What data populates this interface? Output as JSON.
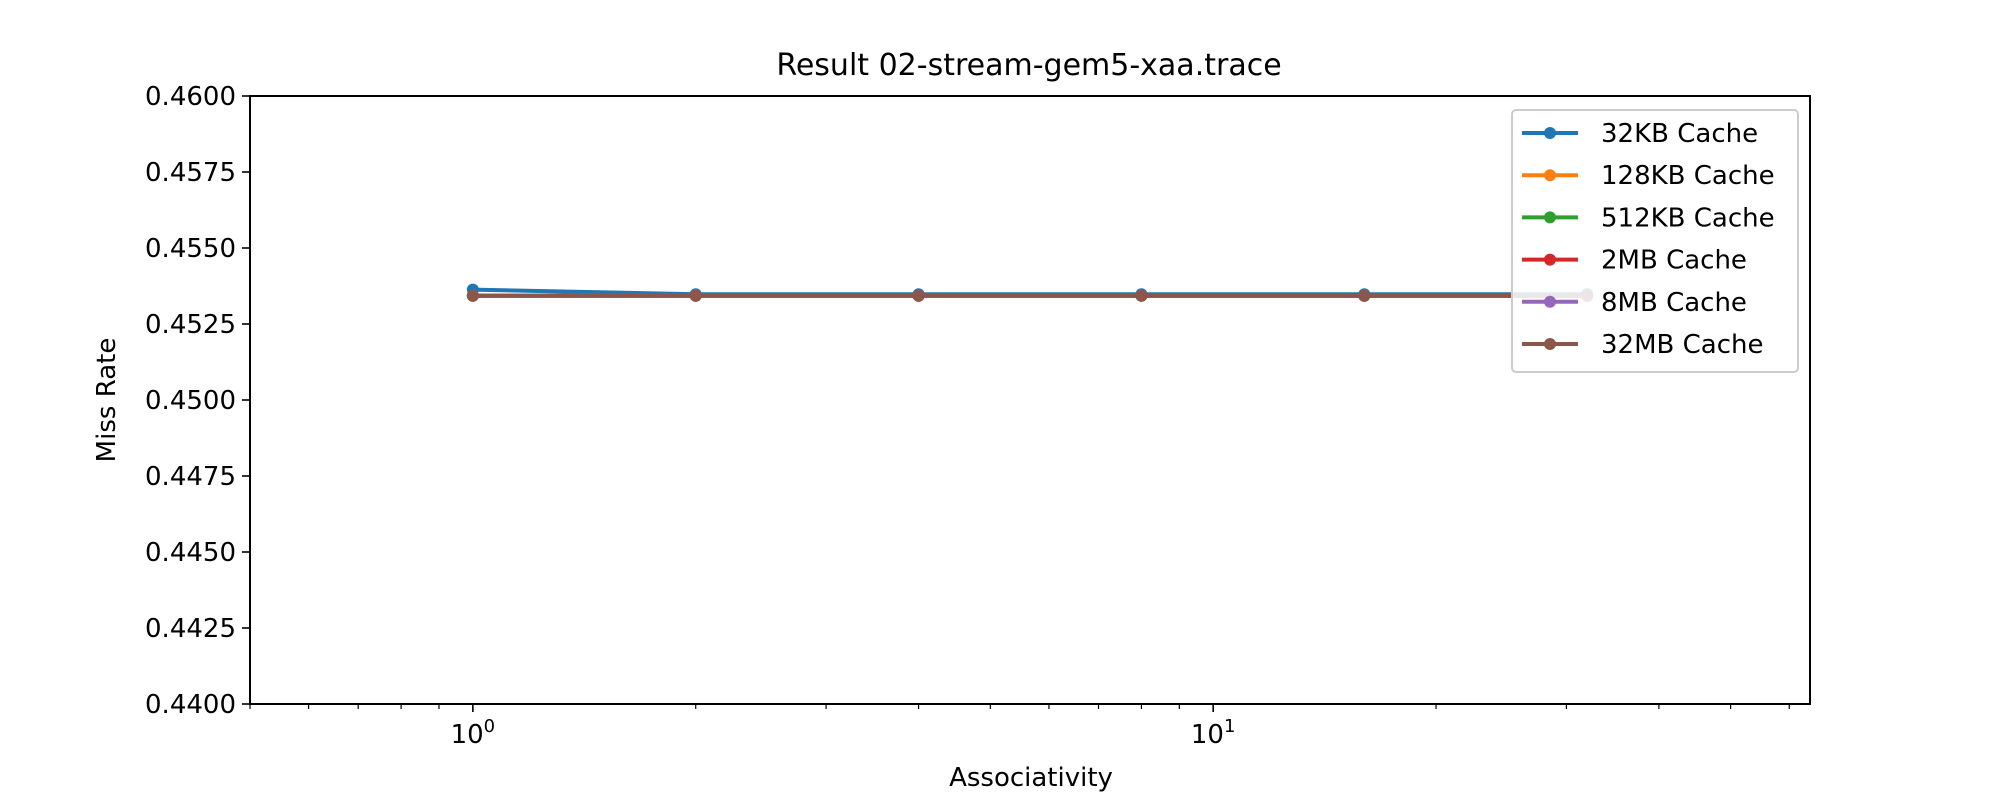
{
  "chart_data": {
    "type": "line",
    "title": "Result 02-stream-gem5-xaa.trace",
    "xlabel": "Associativity",
    "ylabel": "Miss Rate",
    "xscale": "log",
    "xlim": [
      0.5,
      64
    ],
    "ylim": [
      0.44,
      0.46
    ],
    "x": [
      1,
      2,
      4,
      8,
      16,
      32
    ],
    "xticks": [
      {
        "value": 1,
        "base": "10",
        "exp": "0"
      },
      {
        "value": 10,
        "base": "10",
        "exp": "1"
      }
    ],
    "yticks": [
      "0.4400",
      "0.4425",
      "0.4450",
      "0.4475",
      "0.4500",
      "0.4525",
      "0.4550",
      "0.4575",
      "0.4600"
    ],
    "ytick_values": [
      0.44,
      0.4425,
      0.445,
      0.4475,
      0.45,
      0.4525,
      0.455,
      0.4575,
      0.46
    ],
    "grid": false,
    "legend": "top-right",
    "series": [
      {
        "name": "32KB Cache",
        "color": "#1f77b4",
        "values": [
          0.45363,
          0.45348,
          0.45348,
          0.45348,
          0.45348,
          0.45348
        ]
      },
      {
        "name": "128KB Cache",
        "color": "#ff7f0e",
        "values": [
          0.45343,
          0.45343,
          0.45343,
          0.45343,
          0.45343,
          0.45343
        ]
      },
      {
        "name": "512KB Cache",
        "color": "#2ca02c",
        "values": [
          0.45343,
          0.45343,
          0.45343,
          0.45343,
          0.45343,
          0.45343
        ]
      },
      {
        "name": "2MB Cache",
        "color": "#d62728",
        "values": [
          0.45343,
          0.45343,
          0.45343,
          0.45343,
          0.45343,
          0.45343
        ]
      },
      {
        "name": "8MB Cache",
        "color": "#9467bd",
        "values": [
          0.45343,
          0.45343,
          0.45343,
          0.45343,
          0.45343,
          0.45343
        ]
      },
      {
        "name": "32MB Cache",
        "color": "#8c564b",
        "values": [
          0.45343,
          0.45343,
          0.45343,
          0.45343,
          0.45343,
          0.45343
        ]
      }
    ]
  }
}
